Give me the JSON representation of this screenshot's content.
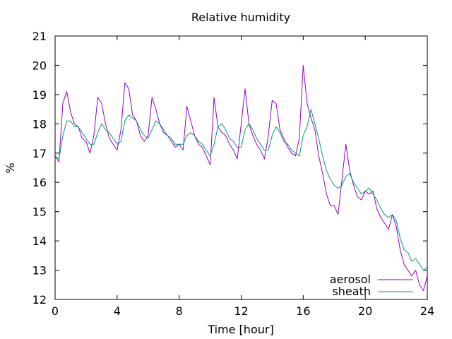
{
  "chart_data": {
    "type": "line",
    "title": "Relative humidity",
    "xlabel": "Time [hour]",
    "ylabel": "%",
    "xlim": [
      0,
      24
    ],
    "ylim": [
      12,
      21
    ],
    "xticks": [
      0,
      4,
      8,
      12,
      16,
      20,
      24
    ],
    "yticks": [
      12,
      13,
      14,
      15,
      16,
      17,
      18,
      19,
      20,
      21
    ],
    "grid": false,
    "legend_position": "bottom-right",
    "series": [
      {
        "name": "aerosol",
        "color": "#9400d3",
        "x": [
          0.0,
          0.25,
          0.5,
          0.75,
          1.0,
          1.25,
          1.5,
          1.75,
          2.0,
          2.25,
          2.5,
          2.75,
          3.0,
          3.25,
          3.5,
          3.75,
          4.0,
          4.25,
          4.5,
          4.75,
          5.0,
          5.25,
          5.5,
          5.75,
          6.0,
          6.25,
          6.5,
          6.75,
          7.0,
          7.25,
          7.5,
          7.75,
          8.0,
          8.25,
          8.5,
          8.75,
          9.0,
          9.25,
          9.5,
          9.75,
          10.0,
          10.25,
          10.5,
          10.75,
          11.0,
          11.25,
          11.5,
          11.75,
          12.0,
          12.25,
          12.5,
          12.75,
          13.0,
          13.25,
          13.5,
          13.75,
          14.0,
          14.25,
          14.5,
          14.75,
          15.0,
          15.25,
          15.5,
          15.75,
          16.0,
          16.25,
          16.5,
          16.75,
          17.0,
          17.25,
          17.5,
          17.75,
          18.0,
          18.25,
          18.5,
          18.75,
          19.0,
          19.25,
          19.5,
          19.75,
          20.0,
          20.25,
          20.5,
          20.75,
          21.0,
          21.25,
          21.5,
          21.75,
          22.0,
          22.25,
          22.5,
          22.75,
          23.0,
          23.25,
          23.5,
          23.75,
          24.0
        ],
        "values": [
          16.9,
          16.7,
          18.7,
          19.1,
          18.4,
          18.0,
          17.9,
          17.5,
          17.4,
          17.0,
          17.6,
          18.9,
          18.7,
          18.0,
          17.5,
          17.3,
          17.1,
          17.8,
          19.4,
          19.2,
          18.3,
          18.1,
          17.6,
          17.4,
          17.6,
          18.9,
          18.5,
          18.0,
          17.7,
          17.6,
          17.4,
          17.2,
          17.3,
          17.1,
          18.6,
          18.1,
          17.6,
          17.3,
          17.2,
          16.9,
          16.6,
          18.9,
          17.9,
          17.7,
          17.6,
          17.3,
          17.1,
          16.8,
          18.0,
          19.2,
          18.0,
          17.6,
          17.3,
          17.1,
          16.8,
          17.6,
          18.8,
          18.7,
          17.8,
          17.5,
          17.2,
          17.0,
          16.9,
          17.5,
          20.0,
          18.7,
          18.2,
          17.8,
          16.9,
          16.3,
          15.6,
          15.2,
          15.2,
          14.9,
          16.1,
          17.3,
          16.4,
          15.9,
          15.5,
          15.4,
          15.7,
          15.6,
          15.7,
          15.1,
          14.8,
          14.6,
          14.4,
          14.9,
          14.5,
          13.7,
          13.2,
          13.0,
          12.8,
          13.0,
          12.5,
          12.3,
          12.8
        ]
      },
      {
        "name": "sheath",
        "color": "#009e73",
        "x": [
          0.0,
          0.25,
          0.5,
          0.75,
          1.0,
          1.25,
          1.5,
          1.75,
          2.0,
          2.25,
          2.5,
          2.75,
          3.0,
          3.25,
          3.5,
          3.75,
          4.0,
          4.25,
          4.5,
          4.75,
          5.0,
          5.25,
          5.5,
          5.75,
          6.0,
          6.25,
          6.5,
          6.75,
          7.0,
          7.25,
          7.5,
          7.75,
          8.0,
          8.25,
          8.5,
          8.75,
          9.0,
          9.25,
          9.5,
          9.75,
          10.0,
          10.25,
          10.5,
          10.75,
          11.0,
          11.25,
          11.5,
          11.75,
          12.0,
          12.25,
          12.5,
          12.75,
          13.0,
          13.25,
          13.5,
          13.75,
          14.0,
          14.25,
          14.5,
          14.75,
          15.0,
          15.25,
          15.5,
          15.75,
          16.0,
          16.25,
          16.5,
          16.75,
          17.0,
          17.25,
          17.5,
          17.75,
          18.0,
          18.25,
          18.5,
          18.75,
          19.0,
          19.25,
          19.5,
          19.75,
          20.0,
          20.25,
          20.5,
          20.75,
          21.0,
          21.25,
          21.5,
          21.75,
          22.0,
          22.25,
          22.5,
          22.75,
          23.0,
          23.25,
          23.5,
          23.75,
          24.0
        ],
        "values": [
          16.9,
          16.8,
          17.6,
          18.1,
          18.1,
          17.9,
          17.9,
          17.7,
          17.5,
          17.3,
          17.3,
          17.7,
          18.0,
          17.8,
          17.7,
          17.5,
          17.3,
          17.4,
          18.1,
          18.3,
          18.2,
          18.1,
          17.8,
          17.6,
          17.5,
          17.8,
          18.1,
          18.0,
          17.8,
          17.6,
          17.5,
          17.3,
          17.3,
          17.3,
          17.6,
          17.7,
          17.6,
          17.4,
          17.3,
          17.1,
          16.9,
          17.3,
          17.9,
          18.0,
          17.8,
          17.5,
          17.4,
          17.2,
          17.2,
          17.8,
          18.0,
          17.8,
          17.5,
          17.3,
          17.1,
          17.1,
          17.6,
          17.9,
          17.7,
          17.4,
          17.3,
          17.1,
          17.0,
          16.9,
          17.6,
          17.9,
          18.5,
          18.0,
          17.5,
          16.9,
          16.4,
          16.1,
          15.9,
          15.8,
          15.9,
          16.2,
          16.3,
          16.0,
          15.8,
          15.6,
          15.7,
          15.8,
          15.6,
          15.4,
          15.1,
          14.9,
          14.8,
          14.9,
          14.7,
          14.1,
          13.7,
          13.6,
          13.3,
          13.4,
          13.2,
          13.0,
          13.1
        ]
      }
    ]
  }
}
